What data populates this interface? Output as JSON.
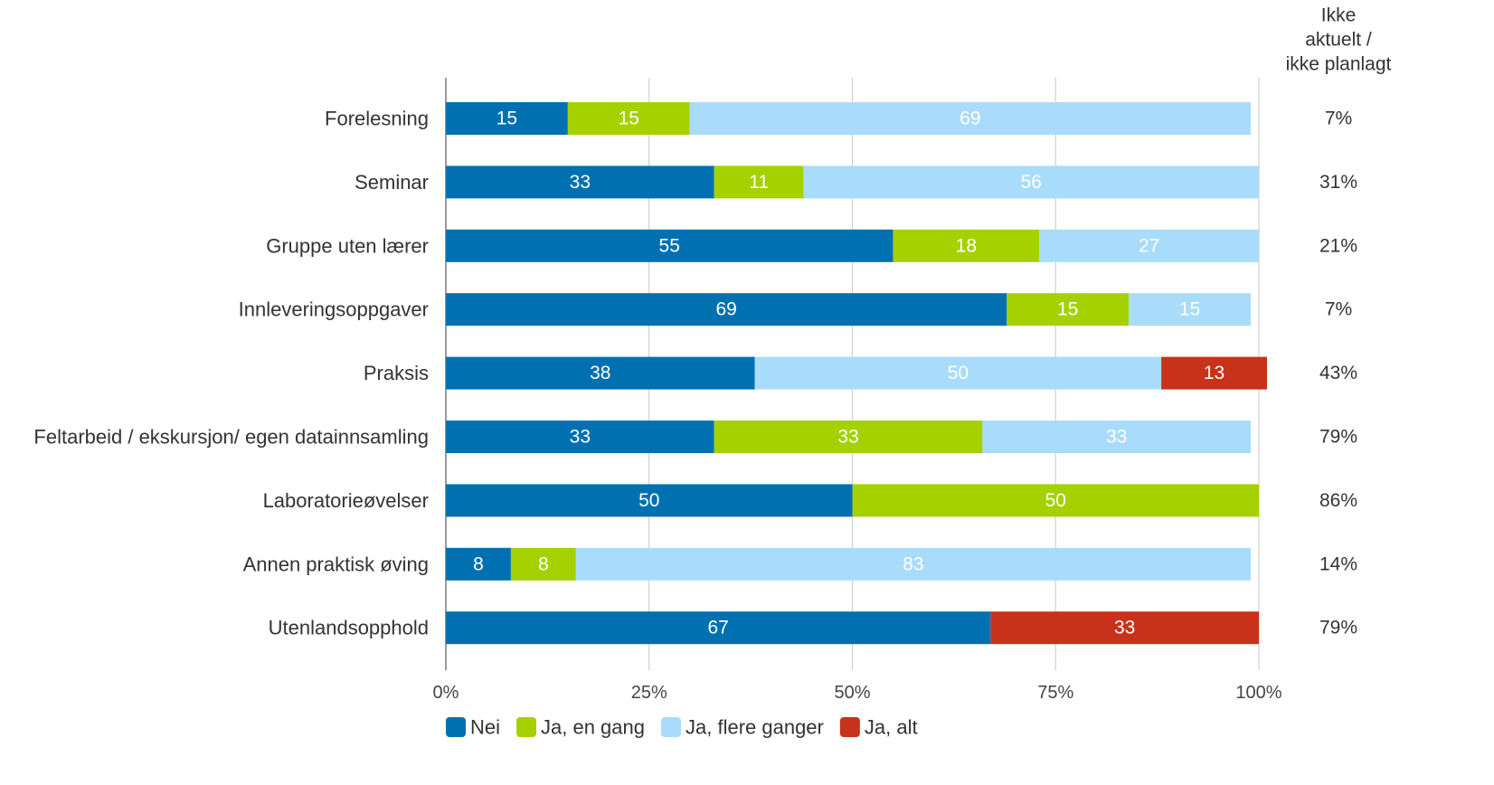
{
  "chart_data": {
    "type": "bar",
    "orientation": "horizontal",
    "stacked": true,
    "categories": [
      "Forelesning",
      "Seminar",
      "Gruppe uten lærer",
      "Innleveringsoppgaver",
      "Praksis",
      "Feltarbeid / ekskursjon/ egen datainnsamling",
      "Laboratorieøvelser",
      "Annen praktisk øving",
      "Utenlandsopphold"
    ],
    "series": [
      {
        "name": "Nei",
        "color": "#0070b0",
        "label_color": "#ffffff",
        "values": [
          15,
          33,
          55,
          69,
          38,
          33,
          50,
          8,
          67
        ]
      },
      {
        "name": "Ja, en gang",
        "color": "#a5d100",
        "label_color": "#ffffff",
        "values": [
          15,
          11,
          18,
          15,
          0,
          33,
          50,
          8,
          0
        ]
      },
      {
        "name": "Ja, flere ganger",
        "color": "#a9dcfb",
        "label_color": "#ffffff",
        "values": [
          69,
          56,
          27,
          15,
          50,
          33,
          0,
          83,
          0
        ]
      },
      {
        "name": "Ja, alt",
        "color": "#c8321a",
        "label_color": "#ffffff",
        "values": [
          0,
          0,
          0,
          0,
          13,
          0,
          0,
          0,
          33
        ]
      }
    ],
    "side_column": {
      "header": [
        "Ikke",
        "aktuelt /",
        "ikke planlagt"
      ],
      "values": [
        "7%",
        "31%",
        "21%",
        "7%",
        "43%",
        "79%",
        "86%",
        "14%",
        "79%"
      ]
    },
    "xlim": [
      0,
      100
    ],
    "xticks": [
      0,
      25,
      50,
      75,
      100
    ],
    "xtick_labels": [
      "0%",
      "25%",
      "50%",
      "75%",
      "100%"
    ],
    "grid": true,
    "legend_position": "bottom",
    "title": "",
    "xlabel": "",
    "ylabel": ""
  }
}
